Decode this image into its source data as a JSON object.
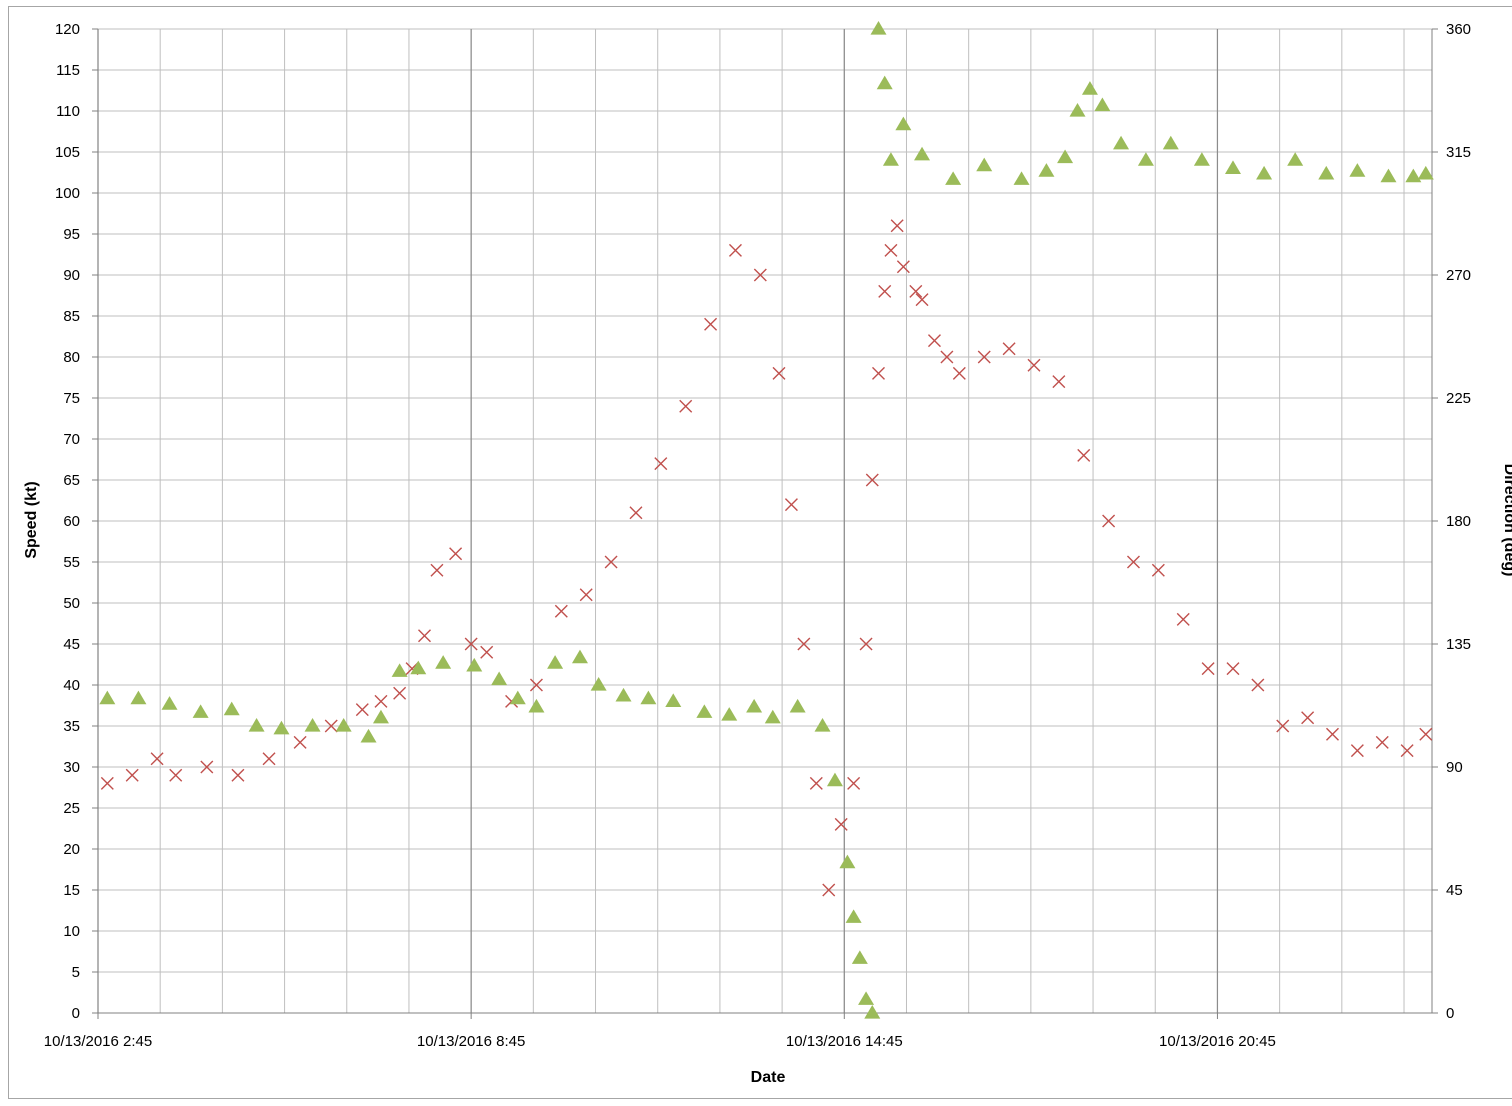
{
  "chart_data": {
    "type": "scatter",
    "title": "",
    "xlabel": "Date",
    "ylabel_left": "Speed (kt)",
    "ylabel_right": "Direction (deg)",
    "x_tick_labels": [
      "10/13/2016 2:45",
      "10/13/2016 8:45",
      "10/13/2016 14:45",
      "10/13/2016 20:45"
    ],
    "x_tick_hours": [
      2.75,
      8.75,
      14.75,
      20.75
    ],
    "xlim_hours": [
      2.75,
      24.2
    ],
    "ylim_left": [
      0,
      120
    ],
    "ylim_right": [
      0,
      360
    ],
    "left_ticks": [
      0,
      5,
      10,
      15,
      20,
      25,
      30,
      35,
      40,
      45,
      50,
      55,
      60,
      65,
      70,
      75,
      80,
      85,
      90,
      95,
      100,
      105,
      110,
      115,
      120
    ],
    "right_ticks": [
      0,
      45,
      90,
      135,
      180,
      225,
      270,
      315,
      360
    ],
    "grid": true,
    "legend": "none",
    "series": [
      {
        "axis": "left",
        "marker": "x",
        "color": "#C0504D",
        "x_hours": [
          2.9,
          3.3,
          3.7,
          4.0,
          4.5,
          5.0,
          5.5,
          6.0,
          6.5,
          7.0,
          7.3,
          7.6,
          7.8,
          8.0,
          8.2,
          8.5,
          8.75,
          9.0,
          9.4,
          9.8,
          10.2,
          10.6,
          11.0,
          11.4,
          11.8,
          12.2,
          12.6,
          13.0,
          13.4,
          13.7,
          13.9,
          14.1,
          14.3,
          14.5,
          14.7,
          14.9,
          15.1,
          15.2,
          15.3,
          15.4,
          15.5,
          15.6,
          15.7,
          15.9,
          16.0,
          16.2,
          16.4,
          16.6,
          17.0,
          17.4,
          17.8,
          18.2,
          18.6,
          19.0,
          19.4,
          19.8,
          20.2,
          20.6,
          21.0,
          21.4,
          21.8,
          22.2,
          22.6,
          23.0,
          23.4,
          23.8,
          24.1
        ],
        "values": [
          28,
          29,
          31,
          29,
          30,
          29,
          31,
          33,
          35,
          37,
          38,
          39,
          42,
          46,
          54,
          56,
          45,
          44,
          38,
          40,
          49,
          51,
          55,
          61,
          67,
          74,
          84,
          93,
          90,
          78,
          62,
          45,
          28,
          15,
          23,
          28,
          45,
          65,
          78,
          88,
          93,
          96,
          91,
          88,
          87,
          82,
          80,
          78,
          80,
          81,
          79,
          77,
          68,
          60,
          55,
          54,
          48,
          42,
          42,
          40,
          35,
          36,
          34,
          32,
          33,
          32,
          34
        ]
      },
      {
        "axis": "right",
        "marker": "triangle",
        "color": "#9BBB59",
        "x_hours": [
          2.9,
          3.4,
          3.9,
          4.4,
          4.9,
          5.3,
          5.7,
          6.2,
          6.7,
          7.1,
          7.3,
          7.6,
          7.9,
          8.3,
          8.8,
          9.2,
          9.5,
          9.8,
          10.1,
          10.5,
          10.8,
          11.2,
          11.6,
          12.0,
          12.5,
          12.9,
          13.3,
          13.6,
          14.0,
          14.4,
          14.6,
          14.8,
          14.9,
          15.0,
          15.1,
          15.2,
          15.3,
          15.4,
          15.5,
          15.7,
          16.0,
          16.5,
          17.0,
          17.6,
          18.0,
          18.3,
          18.5,
          18.7,
          18.9,
          19.2,
          19.6,
          20.0,
          20.5,
          21.0,
          21.5,
          22.0,
          22.5,
          23.0,
          23.5,
          23.9,
          24.1
        ],
        "values": [
          115,
          115,
          113,
          110,
          111,
          105,
          104,
          105,
          105,
          101,
          108,
          125,
          126,
          128,
          127,
          122,
          115,
          112,
          128,
          130,
          120,
          116,
          115,
          114,
          110,
          109,
          112,
          108,
          112,
          105,
          85,
          55,
          35,
          20,
          5,
          0,
          360,
          340,
          312,
          325,
          314,
          305,
          310,
          305,
          308,
          313,
          330,
          338,
          332,
          318,
          312,
          318,
          312,
          309,
          307,
          312,
          307,
          308,
          306,
          306,
          307
        ]
      }
    ]
  }
}
